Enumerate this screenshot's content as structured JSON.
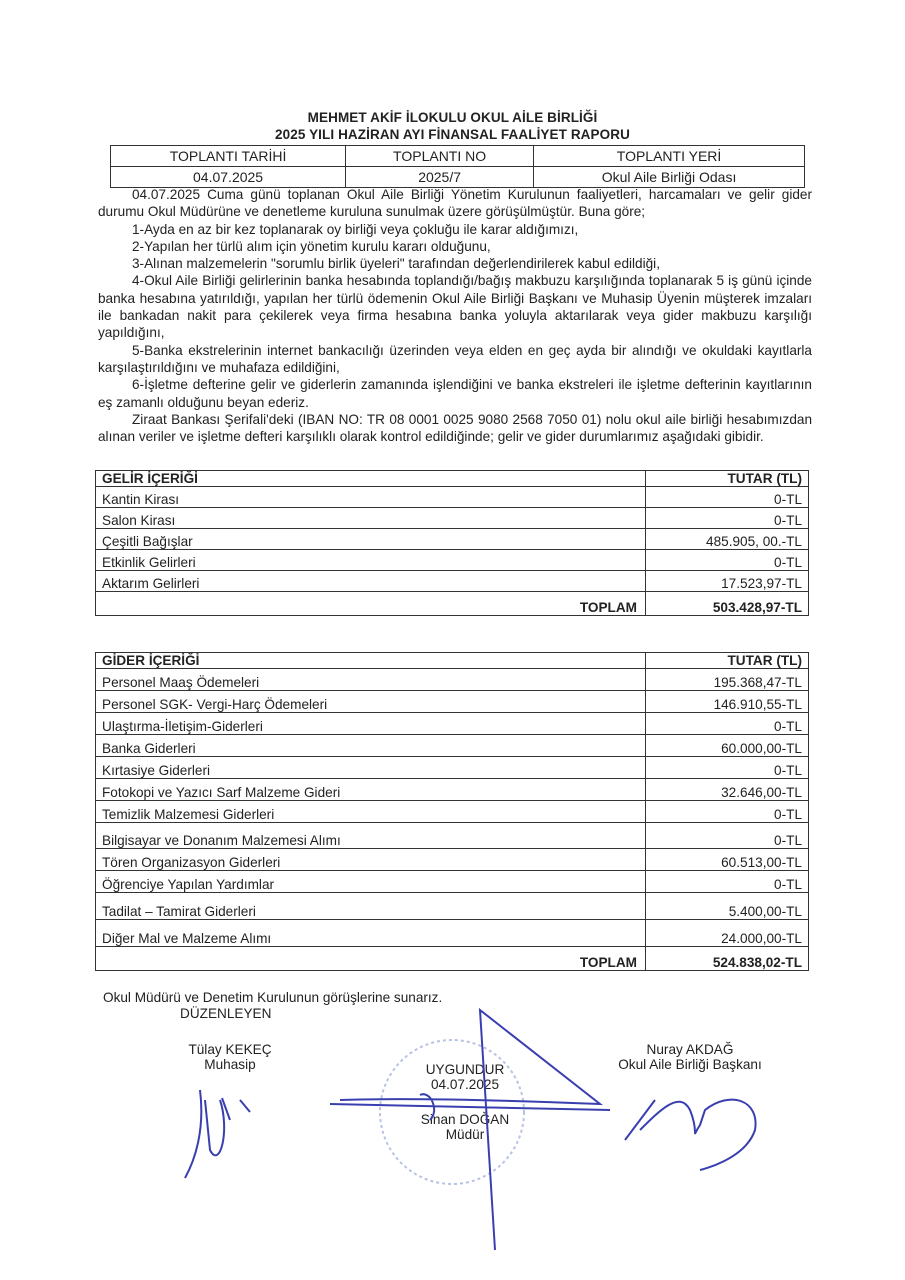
{
  "header": {
    "title_line1": "MEHMET AKİF İLOKULU OKUL AİLE BİRLİĞİ",
    "title_line2": "2025 YILI HAZİRAN AYI FİNANSAL FAALİYET RAPORU"
  },
  "meeting": {
    "headers": [
      "TOPLANTI TARİHİ",
      "TOPLANTI NO",
      "TOPLANTI YERİ"
    ],
    "values": [
      "04.07.2025",
      "2025/7",
      "Okul Aile Birliği Odası"
    ]
  },
  "body": {
    "intro": "04.07.2025 Cuma günü toplanan Okul Aile Birliği Yönetim Kurulunun faaliyetleri, harcamaları ve gelir gider durumu Okul Müdürüne ve denetleme kuruluna sunulmak üzere görüşülmüştür. Buna göre;",
    "items": [
      "1-Ayda en az bir kez toplanarak oy birliği veya çokluğu ile karar aldığımızı,",
      "2-Yapılan her türlü alım için yönetim kurulu kararı olduğunu,",
      "3-Alınan malzemelerin \"sorumlu birlik üyeleri\" tarafından değerlendirilerek kabul edildiği,",
      "4-Okul Aile Birliği gelirlerinin banka hesabında toplandığı/bağış makbuzu karşılığında toplanarak 5 iş günü içinde banka hesabına yatırıldığı, yapılan her türlü ödemenin Okul Aile Birliği Başkanı ve Muhasip Üyenin müşterek imzaları ile bankadan nakit para çekilerek veya firma hesabına banka yoluyla aktarılarak veya gider makbuzu karşılığı yapıldığını,",
      "5-Banka ekstrelerinin internet bankacılığı üzerinden veya elden en geç ayda bir alındığı ve okuldaki kayıtlarla karşılaştırıldığını ve muhafaza edildiğini,",
      "6-İşletme defterine gelir ve giderlerin zamanında işlendiğini ve banka ekstreleri ile işletme defterinin kayıtlarının eş zamanlı olduğunu beyan ederiz.",
      "Ziraat Bankası Şerifali'deki (IBAN NO: TR 08 0001 0025 9080 2568 7050 01) nolu okul aile birliği hesabımızdan alınan veriler ve işletme defteri karşılıklı olarak kontrol edildiğinde; gelir ve gider durumlarımız aşağıdaki gibidir."
    ]
  },
  "income": {
    "header": "GELİR İÇERİĞİ",
    "amount_header": "TUTAR (TL)",
    "rows": [
      [
        "Kantin Kirası",
        "0-TL"
      ],
      [
        "Salon Kirası",
        "0-TL"
      ],
      [
        "Çeşitli Bağışlar",
        "485.905, 00.-TL"
      ],
      [
        "Etkinlik Gelirleri",
        "0-TL"
      ],
      [
        "Aktarım Gelirleri",
        "17.523,97-TL"
      ]
    ],
    "total_label": "TOPLAM",
    "total": "503.428,97-TL"
  },
  "expense": {
    "header": "GİDER İÇERİĞİ",
    "amount_header": "TUTAR (TL)",
    "rows": [
      [
        "Personel Maaş Ödemeleri",
        "195.368,47-TL"
      ],
      [
        "Personel SGK- Vergi-Harç Ödemeleri",
        "146.910,55-TL"
      ],
      [
        "Ulaştırma-İletişim-Giderleri",
        "0-TL"
      ],
      [
        "Banka Giderleri",
        "60.000,00-TL"
      ],
      [
        "Kırtasiye Giderleri",
        "0-TL"
      ],
      [
        "Fotokopi ve Yazıcı Sarf Malzeme Gideri",
        "32.646,00-TL"
      ],
      [
        "Temizlik Malzemesi Giderleri",
        "0-TL"
      ],
      [
        "Bilgisayar ve Donanım Malzemesi Alımı",
        "0-TL"
      ],
      [
        "Tören Organizasyon Giderleri",
        "60.513,00-TL"
      ],
      [
        "Öğrenciye Yapılan Yardımlar",
        "0-TL"
      ],
      [
        "Tadilat – Tamirat Giderleri",
        "5.400,00-TL"
      ],
      [
        "Diğer Mal ve Malzeme Alımı",
        "24.000,00-TL"
      ]
    ],
    "total_label": "TOPLAM",
    "total": "524.838,02-TL"
  },
  "footer": {
    "submit": "Okul Müdürü ve Denetim Kurulunun görüşlerine sunarız.",
    "prepared": "DÜZENLEYEN",
    "signers": [
      {
        "name": "Tülay KEKEÇ",
        "role": "Muhasip"
      },
      {
        "approval": "UYGUNDUR",
        "date": "04.07.2025",
        "name": "Sinan DOĞAN",
        "role": "Müdür"
      },
      {
        "name": "Nuray AKDAĞ",
        "role": "Okul Aile Birliği Başkanı"
      }
    ]
  },
  "colors": {
    "ink": "#3a3fb0",
    "text": "#222222"
  }
}
